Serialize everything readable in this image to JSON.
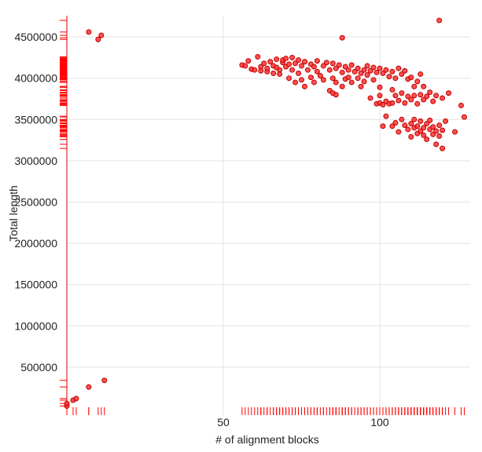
{
  "chart_data": {
    "type": "scatter",
    "title": "",
    "xlabel": "# of alignment blocks",
    "ylabel": "Total length",
    "xlim": [
      0,
      128
    ],
    "ylim": [
      0,
      4750000
    ],
    "x_ticks": [
      50,
      100
    ],
    "y_ticks": [
      500000,
      1000000,
      1500000,
      2000000,
      2500000,
      3000000,
      3500000,
      4000000,
      4500000
    ],
    "x_tick_labels": [
      "50",
      "100"
    ],
    "y_tick_labels": [
      "500000",
      "1000000",
      "1500000",
      "2000000",
      "2500000",
      "3000000",
      "3500000",
      "4000000",
      "4500000"
    ],
    "grid": true,
    "rug": true,
    "point_color": "#ff3333",
    "rug_color": "#ff0000",
    "series": [
      {
        "points": [
          [
            7,
            4560000
          ],
          [
            10,
            4470000
          ],
          [
            11,
            4520000
          ],
          [
            88,
            4490000
          ],
          [
            119,
            4700000
          ],
          [
            0,
            30000
          ],
          [
            0,
            60000
          ],
          [
            2,
            100000
          ],
          [
            3,
            120000
          ],
          [
            7,
            260000
          ],
          [
            12,
            340000
          ],
          [
            56,
            4160000
          ],
          [
            57,
            4150000
          ],
          [
            58,
            4210000
          ],
          [
            59,
            4110000
          ],
          [
            60,
            4100000
          ],
          [
            61,
            4260000
          ],
          [
            62,
            4140000
          ],
          [
            62,
            4090000
          ],
          [
            63,
            4180000
          ],
          [
            64,
            4080000
          ],
          [
            64,
            4120000
          ],
          [
            65,
            4200000
          ],
          [
            66,
            4150000
          ],
          [
            66,
            4060000
          ],
          [
            67,
            4230000
          ],
          [
            67,
            4130000
          ],
          [
            68,
            4100000
          ],
          [
            68,
            4050000
          ],
          [
            69,
            4190000
          ],
          [
            69,
            4220000
          ],
          [
            70,
            4140000
          ],
          [
            70,
            4240000
          ],
          [
            71,
            4170000
          ],
          [
            71,
            4000000
          ],
          [
            72,
            4250000
          ],
          [
            72,
            4100000
          ],
          [
            73,
            4180000
          ],
          [
            73,
            3950000
          ],
          [
            74,
            4220000
          ],
          [
            74,
            4060000
          ],
          [
            75,
            4150000
          ],
          [
            75,
            3980000
          ],
          [
            76,
            4200000
          ],
          [
            76,
            3900000
          ],
          [
            77,
            4100000
          ],
          [
            78,
            4170000
          ],
          [
            78,
            4010000
          ],
          [
            79,
            4140000
          ],
          [
            79,
            3950000
          ],
          [
            80,
            4210000
          ],
          [
            80,
            4080000
          ],
          [
            81,
            4030000
          ],
          [
            82,
            4150000
          ],
          [
            82,
            3980000
          ],
          [
            83,
            4190000
          ],
          [
            84,
            4100000
          ],
          [
            84,
            3850000
          ],
          [
            85,
            4180000
          ],
          [
            85,
            4000000
          ],
          [
            86,
            4120000
          ],
          [
            86,
            3950000
          ],
          [
            87,
            4160000
          ],
          [
            88,
            4070000
          ],
          [
            88,
            3900000
          ],
          [
            89,
            4140000
          ],
          [
            89,
            3990000
          ],
          [
            90,
            4100000
          ],
          [
            90,
            4010000
          ],
          [
            91,
            4160000
          ],
          [
            91,
            3950000
          ],
          [
            92,
            4080000
          ],
          [
            93,
            4120000
          ],
          [
            93,
            4000000
          ],
          [
            94,
            4060000
          ],
          [
            94,
            3900000
          ],
          [
            95,
            4100000
          ],
          [
            95,
            3960000
          ],
          [
            96,
            4150000
          ],
          [
            96,
            4040000
          ],
          [
            97,
            4090000
          ],
          [
            97,
            3760000
          ],
          [
            98,
            4130000
          ],
          [
            98,
            3980000
          ],
          [
            99,
            4070000
          ],
          [
            99,
            3690000
          ],
          [
            100,
            4120000
          ],
          [
            100,
            3700000
          ],
          [
            100,
            3890000
          ],
          [
            101,
            4060000
          ],
          [
            101,
            3680000
          ],
          [
            102,
            4100000
          ],
          [
            102,
            3720000
          ],
          [
            103,
            4020000
          ],
          [
            103,
            3690000
          ],
          [
            104,
            4080000
          ],
          [
            104,
            3860000
          ],
          [
            104,
            3700000
          ],
          [
            105,
            4000000
          ],
          [
            105,
            3790000
          ],
          [
            106,
            4120000
          ],
          [
            106,
            3730000
          ],
          [
            107,
            4050000
          ],
          [
            107,
            3820000
          ],
          [
            108,
            4090000
          ],
          [
            108,
            3700000
          ],
          [
            109,
            3990000
          ],
          [
            109,
            3780000
          ],
          [
            110,
            4010000
          ],
          [
            110,
            3740000
          ],
          [
            111,
            3900000
          ],
          [
            111,
            3790000
          ],
          [
            112,
            3960000
          ],
          [
            112,
            3690000
          ],
          [
            113,
            4050000
          ],
          [
            113,
            3800000
          ],
          [
            114,
            3900000
          ],
          [
            114,
            3740000
          ],
          [
            115,
            3780000
          ],
          [
            116,
            3830000
          ],
          [
            117,
            3720000
          ],
          [
            118,
            3790000
          ],
          [
            120,
            3760000
          ],
          [
            122,
            3820000
          ],
          [
            126,
            3670000
          ],
          [
            85,
            3820000
          ],
          [
            86,
            3800000
          ],
          [
            100,
            3790000
          ],
          [
            101,
            3420000
          ],
          [
            102,
            3540000
          ],
          [
            104,
            3420000
          ],
          [
            105,
            3460000
          ],
          [
            106,
            3350000
          ],
          [
            107,
            3500000
          ],
          [
            108,
            3430000
          ],
          [
            109,
            3380000
          ],
          [
            110,
            3450000
          ],
          [
            110,
            3290000
          ],
          [
            111,
            3400000
          ],
          [
            111,
            3500000
          ],
          [
            112,
            3420000
          ],
          [
            112,
            3330000
          ],
          [
            113,
            3480000
          ],
          [
            113,
            3360000
          ],
          [
            114,
            3400000
          ],
          [
            114,
            3310000
          ],
          [
            115,
            3450000
          ],
          [
            115,
            3260000
          ],
          [
            116,
            3380000
          ],
          [
            116,
            3490000
          ],
          [
            117,
            3320000
          ],
          [
            117,
            3410000
          ],
          [
            118,
            3360000
          ],
          [
            118,
            3200000
          ],
          [
            119,
            3300000
          ],
          [
            119,
            3430000
          ],
          [
            120,
            3370000
          ],
          [
            120,
            3150000
          ],
          [
            121,
            3480000
          ],
          [
            124,
            3350000
          ],
          [
            127,
            3530000
          ]
        ]
      }
    ]
  }
}
